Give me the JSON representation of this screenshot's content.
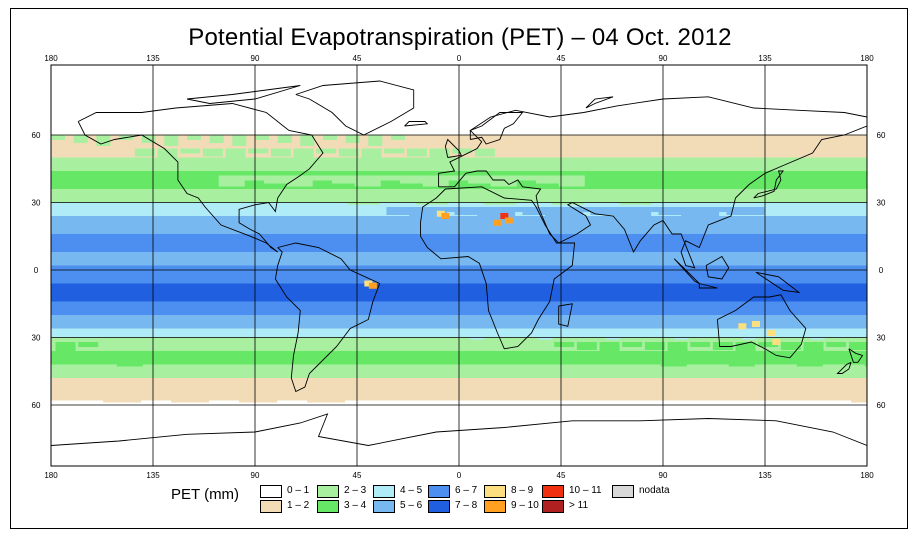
{
  "title": "Potential Evapotranspiration (PET) – 04 Oct. 2012",
  "map": {
    "lon_ticks": [
      "180",
      "135",
      "90",
      "45",
      "0",
      "45",
      "90",
      "135",
      "180"
    ],
    "lat_ticks": [
      "60",
      "30",
      "0",
      "30",
      "60"
    ],
    "land_color": "#ffffff",
    "ocean_color": "#ffffff",
    "grid_color": "#000000",
    "bands": [
      {
        "label": "0 – 1",
        "color": "#ffffff"
      },
      {
        "label": "1 – 2",
        "color": "#f2dcb8"
      },
      {
        "label": "2 – 3",
        "color": "#a8f0a0"
      },
      {
        "label": "3 – 4",
        "color": "#66e866"
      },
      {
        "label": "4 – 5",
        "color": "#b0ecf8"
      },
      {
        "label": "5 – 6",
        "color": "#78b8f0"
      },
      {
        "label": "6 – 7",
        "color": "#4c8ff0"
      },
      {
        "label": "7 – 8",
        "color": "#2060e0"
      }
    ],
    "hotspots": [
      {
        "label": "8 – 9",
        "color": "#fce080"
      },
      {
        "label": "9 – 10",
        "color": "#ffa020"
      },
      {
        "label": "10 – 11",
        "color": "#f03010"
      }
    ]
  },
  "legend": {
    "title": "PET (mm)",
    "items": [
      {
        "label": "0 – 1",
        "color": "#ffffff"
      },
      {
        "label": "1 – 2",
        "color": "#f2dcb8"
      },
      {
        "label": "2 – 3",
        "color": "#a8f0a0"
      },
      {
        "label": "3 – 4",
        "color": "#66e866"
      },
      {
        "label": "4 – 5",
        "color": "#b0ecf8"
      },
      {
        "label": "5 – 6",
        "color": "#78b8f0"
      },
      {
        "label": "6 – 7",
        "color": "#4c8ff0"
      },
      {
        "label": "7 – 8",
        "color": "#2060e0"
      },
      {
        "label": "8 – 9",
        "color": "#fce080"
      },
      {
        "label": "9 – 10",
        "color": "#ffa020"
      },
      {
        "label": "10 – 11",
        "color": "#f03010"
      },
      {
        "label": "> 11",
        "color": "#b02020"
      },
      {
        "label": "nodata",
        "color": "#d8d8d8"
      }
    ]
  }
}
